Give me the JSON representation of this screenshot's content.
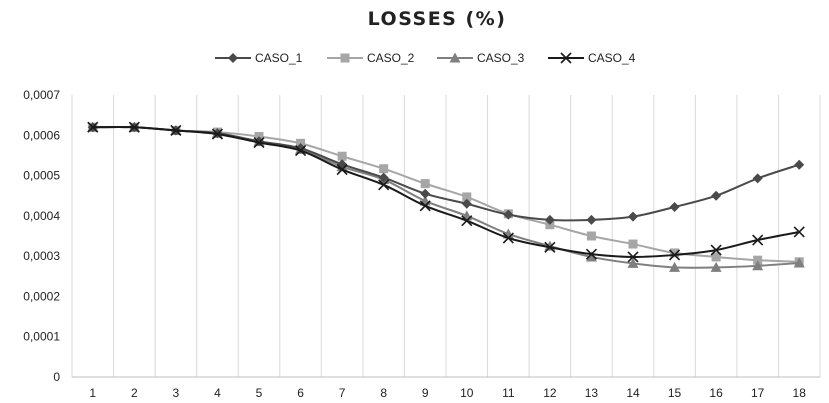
{
  "chart_data": {
    "type": "line",
    "title": "LOSSES  (%)",
    "xlabel": "",
    "ylabel": "",
    "x": [
      "1",
      "2",
      "3",
      "4",
      "5",
      "6",
      "7",
      "8",
      "9",
      "10",
      "11",
      "12",
      "13",
      "14",
      "15",
      "16",
      "17",
      "18"
    ],
    "ylim": [
      0,
      0.0007
    ],
    "yticks": [
      "0",
      "0,0001",
      "0,0002",
      "0,0003",
      "0,0004",
      "0,0005",
      "0,0006",
      "0,0007"
    ],
    "grid": "vertical",
    "legend": "top",
    "series": [
      {
        "name": "CASO_1",
        "marker": "diamond",
        "color": "#4a4a4a",
        "values": [
          0.00062,
          0.00062,
          0.000612,
          0.000605,
          0.000585,
          0.000568,
          0.000528,
          0.000495,
          0.000455,
          0.00043,
          0.000403,
          0.00039,
          0.00039,
          0.000398,
          0.000422,
          0.00045,
          0.000493,
          0.000527
        ]
      },
      {
        "name": "CASO_2",
        "marker": "square",
        "color": "#a6a6a6",
        "values": [
          0.00062,
          0.00062,
          0.000612,
          0.000608,
          0.000597,
          0.00058,
          0.000548,
          0.000517,
          0.00048,
          0.000447,
          0.000405,
          0.000378,
          0.00035,
          0.00033,
          0.000308,
          0.000298,
          0.00029,
          0.000286
        ]
      },
      {
        "name": "CASO_3",
        "marker": "triangle",
        "color": "#7f7f7f",
        "values": [
          0.00062,
          0.00062,
          0.000612,
          0.000605,
          0.000585,
          0.000565,
          0.000522,
          0.00049,
          0.000437,
          0.0004,
          0.000355,
          0.000325,
          0.000298,
          0.000282,
          0.000272,
          0.000272,
          0.000276,
          0.000283
        ]
      },
      {
        "name": "CASO_4",
        "marker": "x",
        "color": "#1a1a1a",
        "values": [
          0.00062,
          0.00062,
          0.000612,
          0.000603,
          0.000582,
          0.000562,
          0.000515,
          0.000477,
          0.000425,
          0.000388,
          0.000345,
          0.000322,
          0.000305,
          0.000298,
          0.000303,
          0.000315,
          0.00034,
          0.00036
        ]
      }
    ]
  }
}
